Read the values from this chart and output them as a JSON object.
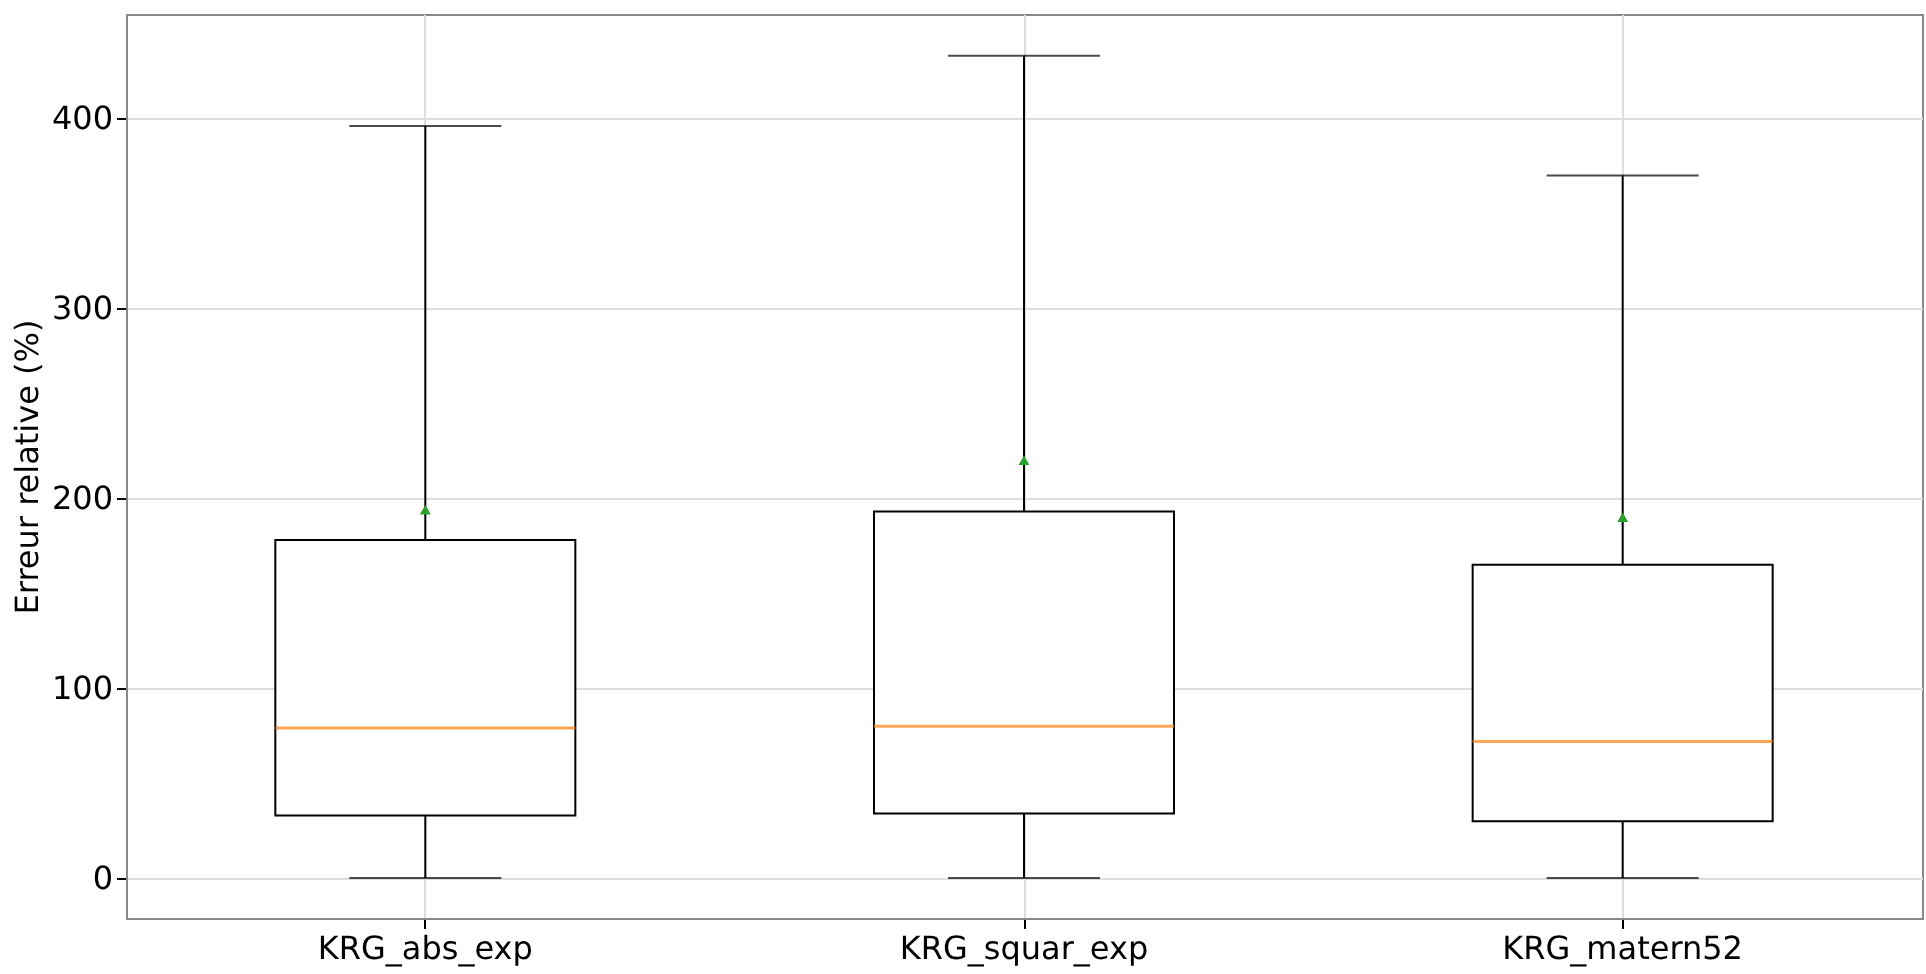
{
  "chart_data": {
    "type": "box",
    "ylabel": "Erreur relative (%)",
    "categories": [
      "KRG_abs_exp",
      "KRG_squar_exp",
      "KRG_matern52"
    ],
    "boxes": [
      {
        "low": 0,
        "q1": 33,
        "median": 79,
        "q3": 178,
        "high": 396,
        "mean": 194
      },
      {
        "low": 0,
        "q1": 34,
        "median": 80,
        "q3": 193,
        "high": 433,
        "mean": 220
      },
      {
        "low": 0,
        "q1": 30,
        "median": 72,
        "q3": 165,
        "high": 370,
        "mean": 190
      }
    ],
    "color": "#000000",
    "ylim": [
      -21,
      455
    ],
    "yticks": [
      0,
      100,
      200,
      300,
      400
    ],
    "grid": true,
    "marker": "triangle"
  }
}
